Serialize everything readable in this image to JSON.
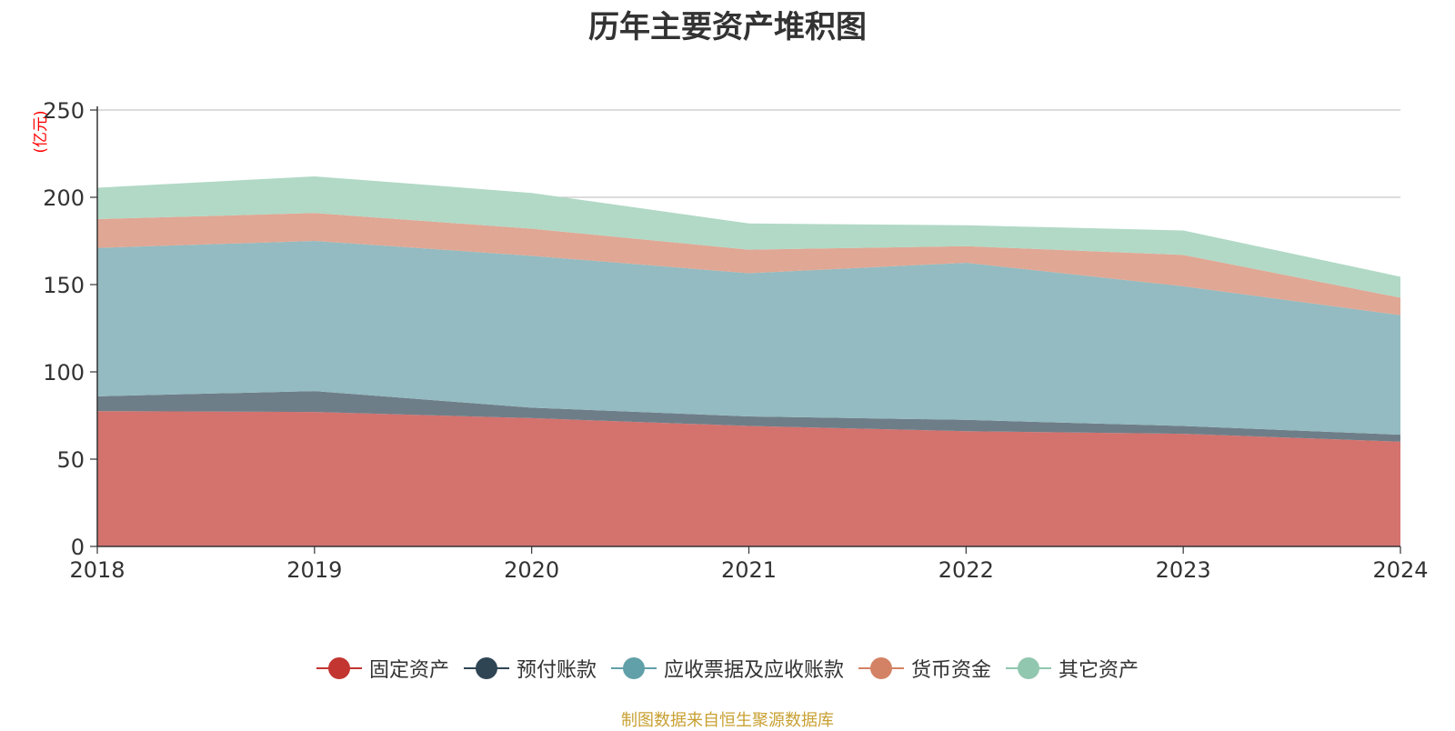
{
  "title": "历年主要资产堆积图",
  "source_note": "制图数据来自恒生聚源数据库",
  "chart_data": {
    "type": "area",
    "stacked": true,
    "title": "历年主要资产堆积图",
    "ylabel": "(亿元)",
    "ylim": [
      0,
      250
    ],
    "yticks": [
      0,
      50,
      100,
      150,
      200,
      250
    ],
    "grid": true,
    "legend_position": "bottom",
    "categories": [
      "2018",
      "2019",
      "2020",
      "2021",
      "2022",
      "2023",
      "2024"
    ],
    "series": [
      {
        "name": "固定资产",
        "color": "#c23531",
        "fill": "#d4726e",
        "values": [
          77.5,
          77,
          73.5,
          69,
          66,
          64.5,
          60
        ]
      },
      {
        "name": "预付账款",
        "color": "#2f4554",
        "fill": "#6e7e88",
        "values": [
          8.5,
          12,
          6,
          5.5,
          6.5,
          4.5,
          4
        ]
      },
      {
        "name": "应收票据及应收账款",
        "color": "#61a0a8",
        "fill": "#93bbc1",
        "values": [
          85,
          86,
          87,
          82,
          90,
          80,
          68.5
        ]
      },
      {
        "name": "货币资金",
        "color": "#d48265",
        "fill": "#e0a794",
        "values": [
          16.5,
          16,
          15.5,
          13.5,
          9.5,
          18,
          10
        ]
      },
      {
        "name": "其它资产",
        "color": "#91c7ae",
        "fill": "#b1d9c6",
        "values": [
          18,
          21,
          20.5,
          15,
          12,
          14,
          12
        ]
      }
    ]
  }
}
